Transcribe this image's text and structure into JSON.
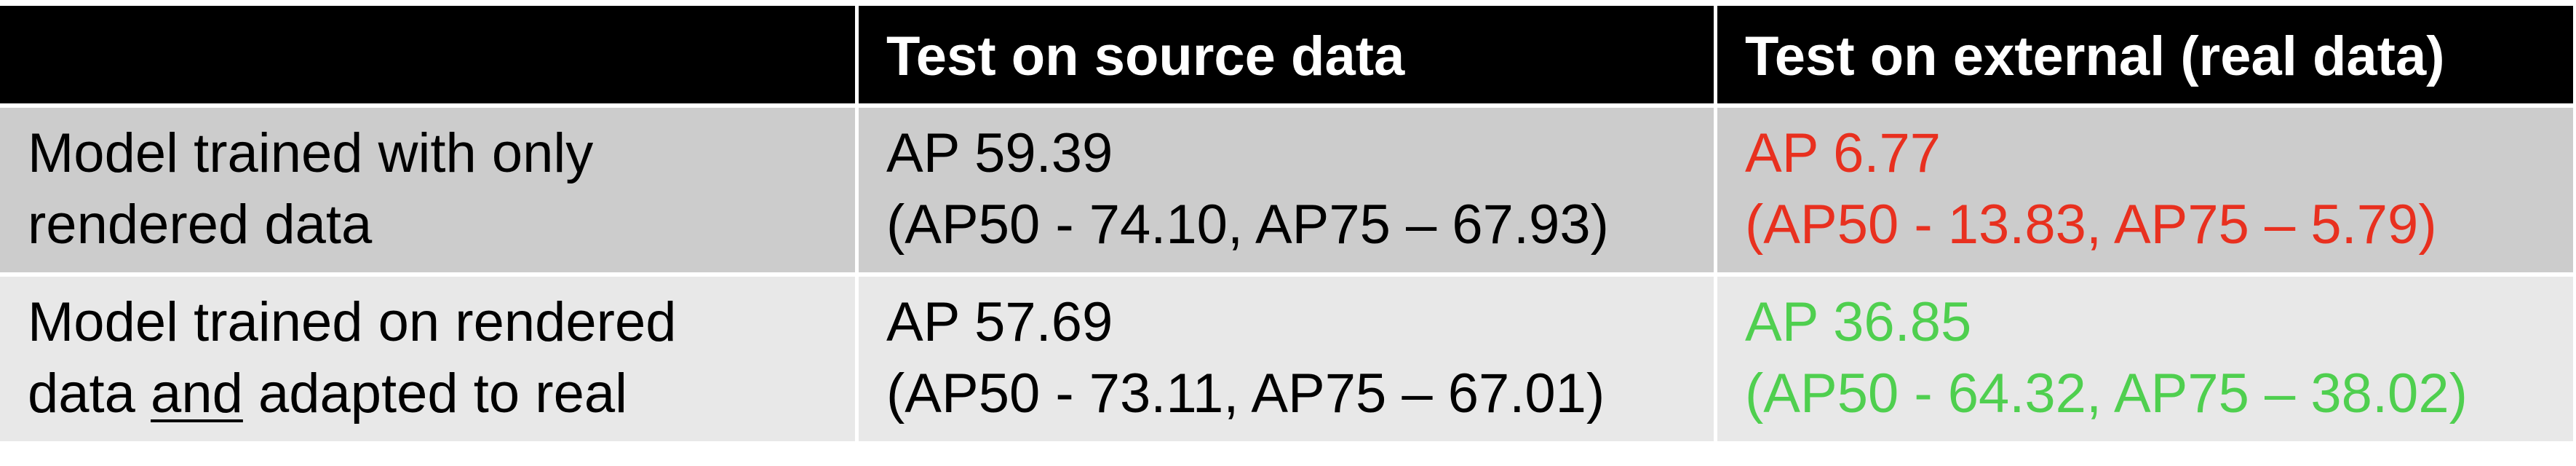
{
  "table": {
    "header": {
      "corner": "",
      "col_source": "Test on source data",
      "col_external": "Test on external (real data)"
    },
    "rows": [
      {
        "label_line1": "Model trained with only",
        "label_line2": "rendered data",
        "source_ap": "AP 59.39",
        "source_detail": "(AP50 - 74.10, AP75 – 67.93)",
        "external_ap": "AP 6.77",
        "external_detail": "(AP50 - 13.83, AP75 – 5.79)",
        "external_color": "#e8301f"
      },
      {
        "label_line1": "Model trained on rendered",
        "label_line2_pre": "data ",
        "label_line2_em": "and",
        "label_line2_post": " adapted to real",
        "source_ap": "AP 57.69",
        "source_detail": "(AP50 - 73.11, AP75 – 67.01)",
        "external_ap": "AP 36.85",
        "external_detail": "(AP50 - 64.32, AP75 – 38.02)",
        "external_color": "#4fcf4f"
      }
    ],
    "colors": {
      "header_bg": "#000000",
      "row1_bg": "#cccccc",
      "row2_bg": "#e8e8e8"
    }
  }
}
